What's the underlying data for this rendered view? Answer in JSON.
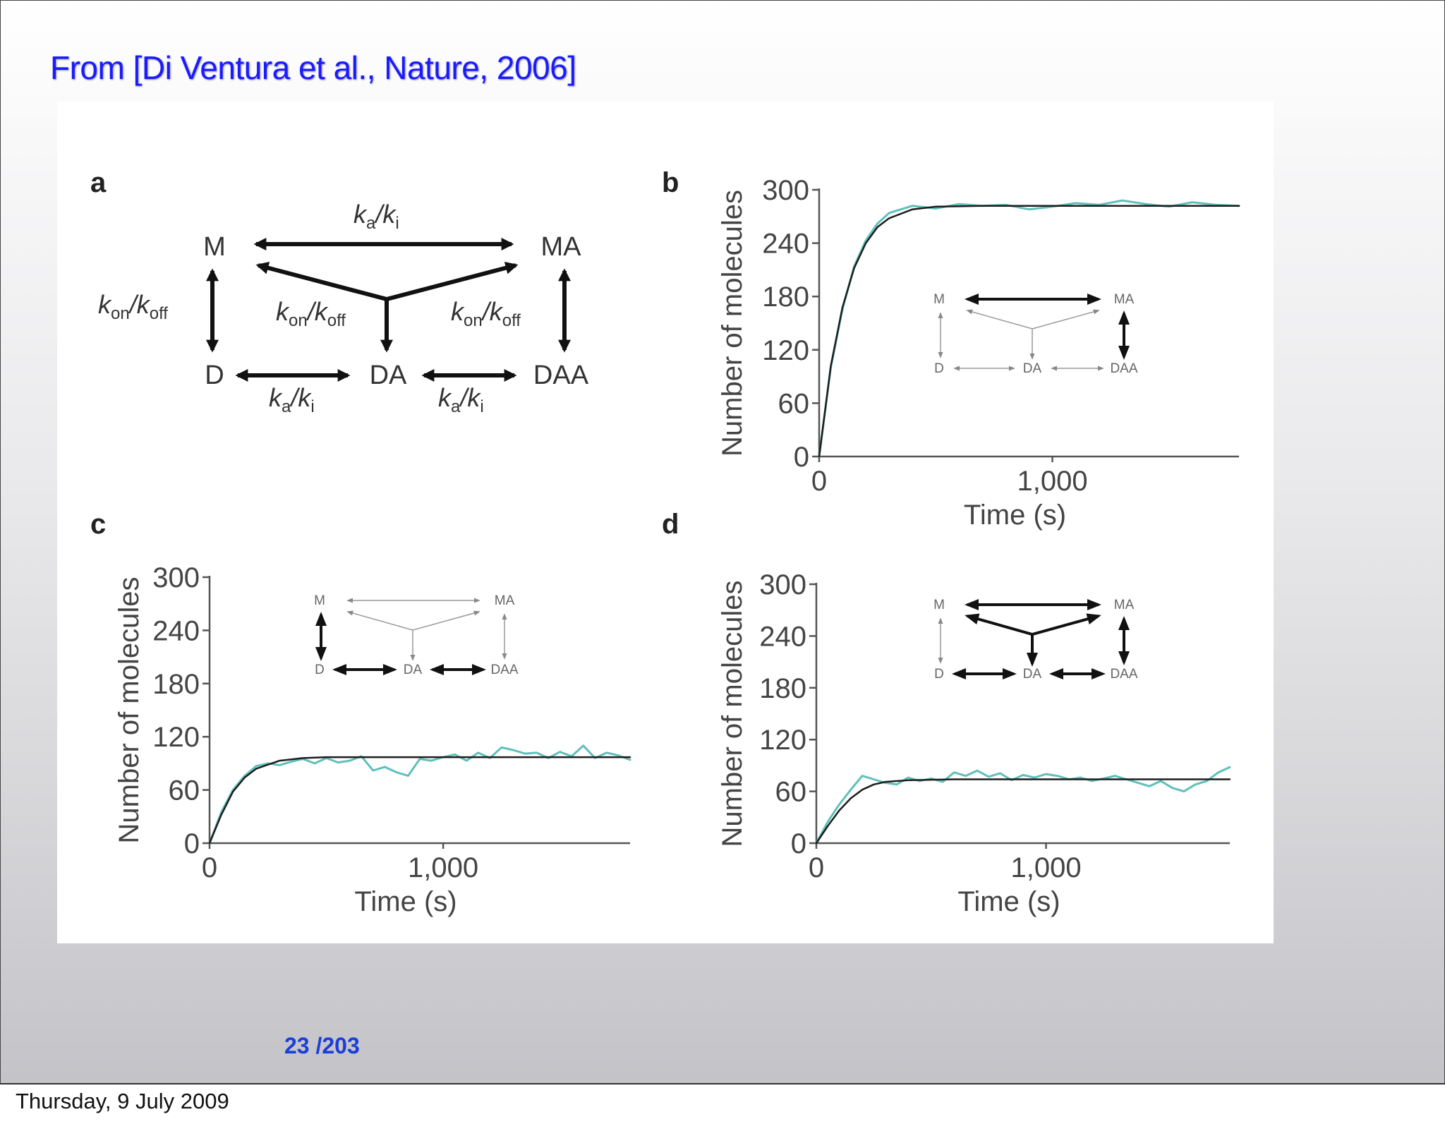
{
  "slide": {
    "title": "From [Di Ventura et al., Nature, 2006]",
    "page_current": "23",
    "page_total": "/203",
    "footer_date": "Thursday, 9 July 2009"
  },
  "panels": {
    "a": {
      "letter": "a",
      "nodes": {
        "M": "M",
        "MA": "MA",
        "D": "D",
        "DA": "DA",
        "DAA": "DAA"
      },
      "rates": {
        "ka_ki": "ka/ki",
        "kon_koff": "kon/koff"
      }
    },
    "b": {
      "letter": "b"
    },
    "c": {
      "letter": "c"
    },
    "d": {
      "letter": "d"
    }
  },
  "chart_data": [
    {
      "panel": "b",
      "type": "line",
      "xlabel": "Time (s)",
      "ylabel": "Number of molecules",
      "xlim": [
        0,
        1800
      ],
      "ylim": [
        0,
        300
      ],
      "yticks": [
        0,
        60,
        120,
        180,
        240,
        300
      ],
      "xticks": [
        0,
        1000
      ],
      "xtick_labels": [
        "0",
        "1,000"
      ],
      "grid": false,
      "series": [
        {
          "kind": "deterministic",
          "color": "#1c1c1c",
          "x": [
            0,
            50,
            100,
            150,
            200,
            250,
            300,
            400,
            500,
            700,
            1000,
            1400,
            1800
          ],
          "y": [
            0,
            102,
            168,
            212,
            240,
            258,
            268,
            278,
            281,
            282,
            282,
            282,
            282
          ]
        },
        {
          "kind": "stochastic",
          "color": "#5fc0bb",
          "x": [
            0,
            50,
            100,
            150,
            200,
            250,
            300,
            400,
            500,
            600,
            700,
            800,
            900,
            1000,
            1100,
            1200,
            1300,
            1400,
            1500,
            1600,
            1700,
            1800
          ],
          "y": [
            0,
            100,
            166,
            214,
            243,
            262,
            274,
            282,
            279,
            284,
            282,
            283,
            278,
            281,
            285,
            283,
            288,
            284,
            281,
            286,
            283,
            282
          ]
        }
      ],
      "inset": {
        "arrows_bold": [
          "M-MA",
          "MA-DAA"
        ]
      }
    },
    {
      "panel": "c",
      "type": "line",
      "xlabel": "Time (s)",
      "ylabel": "Number of molecules",
      "xlim": [
        0,
        1800
      ],
      "ylim": [
        0,
        300
      ],
      "yticks": [
        0,
        60,
        120,
        180,
        240,
        300
      ],
      "xticks": [
        0,
        1000
      ],
      "xtick_labels": [
        "0",
        "1,000"
      ],
      "grid": false,
      "series": [
        {
          "kind": "deterministic",
          "color": "#1c1c1c",
          "x": [
            0,
            50,
            100,
            150,
            200,
            300,
            400,
            500,
            700,
            1000,
            1400,
            1800
          ],
          "y": [
            0,
            32,
            58,
            74,
            84,
            93,
            96,
            97,
            97,
            97,
            97,
            97
          ]
        },
        {
          "kind": "stochastic",
          "color": "#5fc0bb",
          "x": [
            0,
            50,
            100,
            150,
            200,
            250,
            300,
            350,
            400,
            450,
            500,
            550,
            600,
            650,
            700,
            750,
            800,
            850,
            900,
            950,
            1000,
            1050,
            1100,
            1150,
            1200,
            1250,
            1300,
            1350,
            1400,
            1450,
            1500,
            1550,
            1600,
            1650,
            1700,
            1750,
            1800
          ],
          "y": [
            0,
            35,
            60,
            76,
            87,
            90,
            88,
            92,
            95,
            90,
            96,
            91,
            93,
            98,
            82,
            86,
            80,
            76,
            95,
            93,
            97,
            100,
            93,
            102,
            96,
            108,
            105,
            101,
            102,
            96,
            103,
            98,
            110,
            96,
            102,
            99,
            94
          ]
        }
      ],
      "inset": {
        "arrows_bold": [
          "M-D",
          "D-DA",
          "DA-DAA"
        ]
      }
    },
    {
      "panel": "d",
      "type": "line",
      "xlabel": "Time (s)",
      "ylabel": "Number of molecules",
      "xlim": [
        0,
        1800
      ],
      "ylim": [
        0,
        300
      ],
      "yticks": [
        0,
        60,
        120,
        180,
        240,
        300
      ],
      "xticks": [
        0,
        1000
      ],
      "xtick_labels": [
        "0",
        "1,000"
      ],
      "grid": false,
      "series": [
        {
          "kind": "deterministic",
          "color": "#1c1c1c",
          "x": [
            0,
            50,
            100,
            150,
            200,
            250,
            300,
            400,
            600,
            1000,
            1400,
            1800
          ],
          "y": [
            0,
            20,
            38,
            52,
            62,
            68,
            71,
            73,
            74,
            74,
            74,
            74
          ]
        },
        {
          "kind": "stochastic",
          "color": "#5fc0bb",
          "x": [
            0,
            50,
            100,
            150,
            200,
            250,
            300,
            350,
            400,
            450,
            500,
            550,
            600,
            650,
            700,
            750,
            800,
            850,
            900,
            950,
            1000,
            1050,
            1100,
            1150,
            1200,
            1250,
            1300,
            1350,
            1400,
            1450,
            1500,
            1550,
            1600,
            1650,
            1700,
            1750,
            1800
          ],
          "y": [
            0,
            25,
            45,
            62,
            78,
            74,
            70,
            68,
            76,
            72,
            75,
            71,
            82,
            78,
            84,
            77,
            81,
            73,
            79,
            76,
            80,
            78,
            74,
            76,
            72,
            75,
            78,
            74,
            70,
            66,
            72,
            64,
            60,
            68,
            72,
            82,
            88
          ]
        }
      ],
      "inset": {
        "arrows_bold": [
          "M-MA",
          "M-DA",
          "MA-DA",
          "DA-center",
          "MA-DAA",
          "D-DA",
          "DA-DAA"
        ]
      }
    }
  ]
}
